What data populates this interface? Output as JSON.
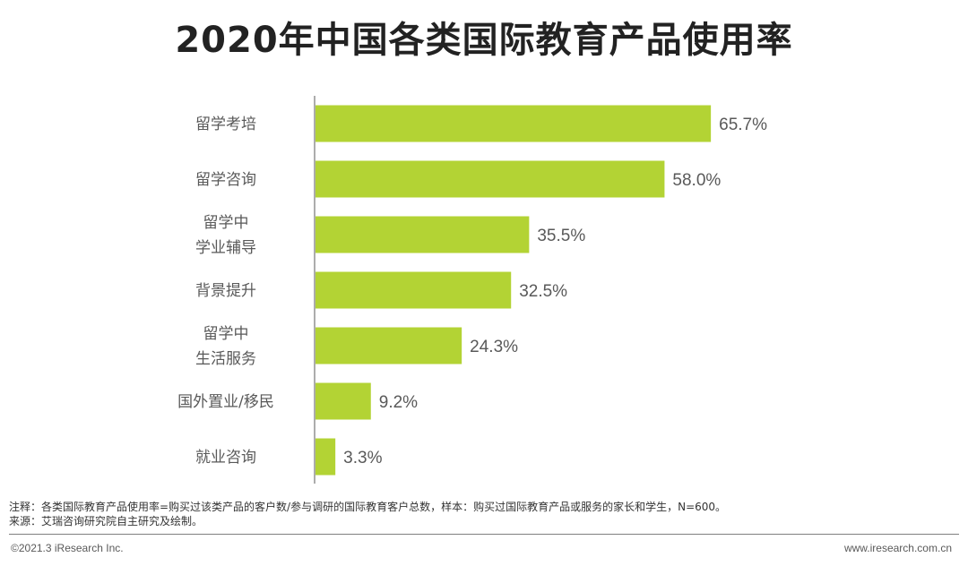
{
  "title": "2020年中国各类国际教育产品使用率",
  "notes": {
    "note": "注释：各类国际教育产品使用率=购买过该类产品的客户数/参与调研的国际教育客户总数，样本：购买过国际教育产品或服务的家长和学生，N=600。",
    "source": "来源：艾瑞咨询研究院自主研究及绘制。"
  },
  "footer": {
    "copyright": "©2021.3 iResearch Inc.",
    "website": "www.iresearch.com.cn"
  },
  "colors": {
    "bar": "#b3d334",
    "axis": "#595959"
  },
  "chart_data": {
    "type": "bar",
    "orientation": "horizontal",
    "title": "2020年中国各类国际教育产品使用率",
    "categories": [
      [
        "留学考培"
      ],
      [
        "留学咨询"
      ],
      [
        "留学中",
        "学业辅导"
      ],
      [
        "背景提升"
      ],
      [
        "留学中",
        "生活服务"
      ],
      [
        "国外置业/移民"
      ],
      [
        "就业咨询"
      ]
    ],
    "values": [
      65.7,
      58.0,
      35.5,
      32.5,
      24.3,
      9.2,
      3.3
    ],
    "value_labels": [
      "65.7%",
      "58.0%",
      "35.5%",
      "32.5%",
      "24.3%",
      "9.2%",
      "3.3%"
    ],
    "xlim": [
      0,
      70
    ],
    "grid": false,
    "legend": "none"
  }
}
